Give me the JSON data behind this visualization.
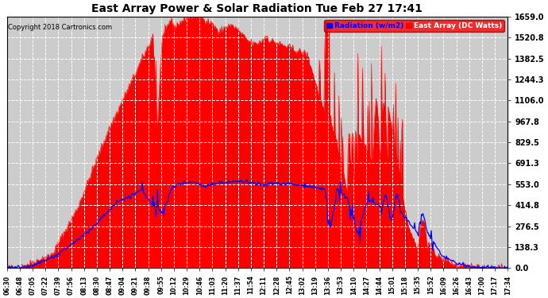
{
  "title": "East Array Power & Solar Radiation Tue Feb 27 17:41",
  "copyright": "Copyright 2018 Cartronics.com",
  "legend_radiation": "Radiation (w/m2)",
  "legend_east": "East Array (DC Watts)",
  "background_color": "#ffffff",
  "plot_bg": "#cccccc",
  "y_ticks": [
    0.0,
    138.3,
    276.5,
    414.8,
    553.0,
    691.3,
    829.5,
    967.8,
    1106.0,
    1244.3,
    1382.5,
    1520.8,
    1659.0
  ],
  "y_max": 1659.0,
  "x_labels": [
    "06:30",
    "06:48",
    "07:05",
    "07:22",
    "07:39",
    "07:56",
    "08:13",
    "08:30",
    "08:47",
    "09:04",
    "09:21",
    "09:38",
    "09:55",
    "10:12",
    "10:29",
    "10:46",
    "11:03",
    "11:20",
    "11:37",
    "11:54",
    "12:11",
    "12:28",
    "12:45",
    "13:02",
    "13:19",
    "13:36",
    "13:53",
    "14:10",
    "14:27",
    "14:44",
    "15:01",
    "15:18",
    "15:35",
    "15:52",
    "16:09",
    "16:26",
    "16:43",
    "17:00",
    "17:17",
    "17:34"
  ],
  "n_points": 663
}
